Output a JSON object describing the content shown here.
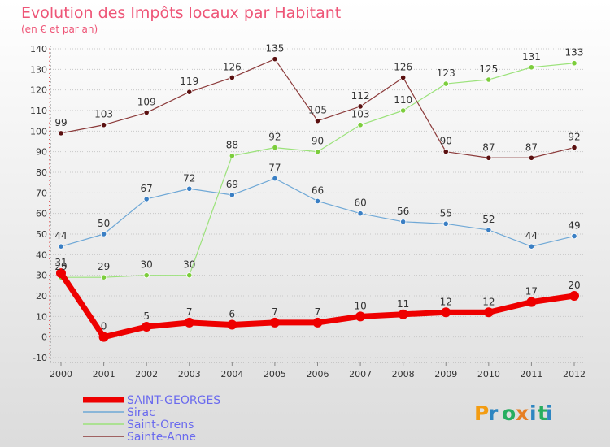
{
  "chart_data": {
    "type": "line",
    "title": "Evolution des Impôts locaux par Habitant",
    "subtitle": "(en € et par an)",
    "xlabel": "",
    "ylabel": "",
    "ylim": [
      -10,
      140
    ],
    "yticks": [
      -10,
      0,
      10,
      20,
      30,
      40,
      50,
      60,
      70,
      80,
      90,
      100,
      110,
      120,
      130,
      140
    ],
    "x": [
      "2000",
      "2001",
      "2002",
      "2003",
      "2004",
      "2005",
      "2006",
      "2007",
      "2008",
      "2009",
      "2010",
      "2011",
      "2012"
    ],
    "grid": "horizontal",
    "legend_position": "bottom-left",
    "series": [
      {
        "name": "Sainte-Anne",
        "color": "#8b3a3a",
        "marker_color": "#5a1010",
        "values": [
          99,
          103,
          109,
          119,
          126,
          135,
          105,
          112,
          126,
          90,
          87,
          87,
          92
        ]
      },
      {
        "name": "Saint-Orens",
        "color": "#9be27a",
        "marker_color": "#7ccd3c",
        "values": [
          29,
          29,
          30,
          30,
          88,
          92,
          90,
          103,
          110,
          123,
          125,
          131,
          133
        ]
      },
      {
        "name": "Sirac",
        "color": "#6fa8d6",
        "marker_color": "#3a7fc4",
        "values": [
          44,
          50,
          67,
          72,
          69,
          77,
          66,
          60,
          56,
          55,
          52,
          44,
          49
        ]
      },
      {
        "name": "SAINT-GEORGES",
        "color": "#ee0000",
        "marker_color": "#ee0000",
        "values": [
          31,
          0,
          5,
          7,
          6,
          7,
          7,
          10,
          11,
          12,
          12,
          17,
          20
        ],
        "bold": true
      }
    ],
    "legend_order": [
      "SAINT-GEORGES",
      "Sirac",
      "Saint-Orens",
      "Sainte-Anne"
    ]
  },
  "logo": {
    "text": "Proxiti"
  },
  "colors": {
    "title": "#ee5577",
    "legend_text": "#6a6aee",
    "axis_text": "#333333"
  }
}
